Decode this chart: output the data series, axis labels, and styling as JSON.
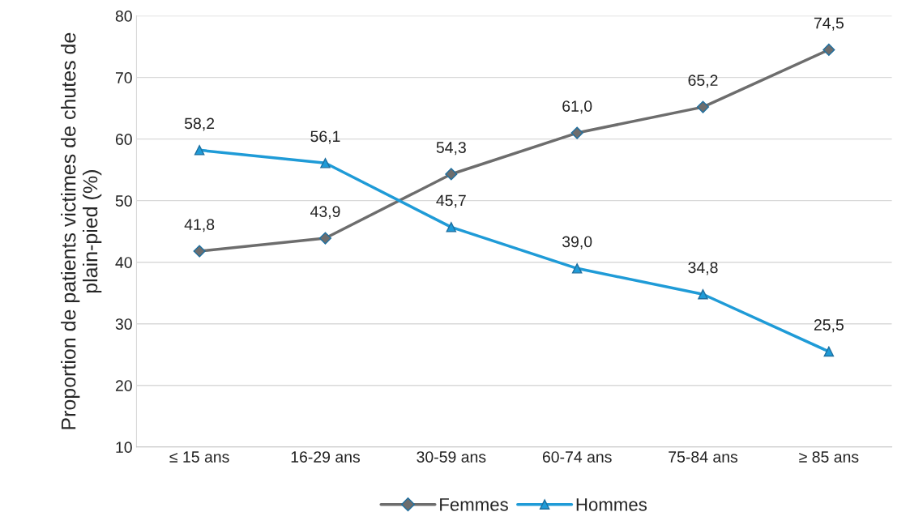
{
  "chart_data": {
    "type": "line",
    "ylabel": "Proportion de patients victimes de chutes de plain-pied (%)",
    "categories": [
      "≤ 15 ans",
      "16-29 ans",
      "30-59 ans",
      "60-74 ans",
      "75-84 ans",
      "≥ 85 ans"
    ],
    "series": [
      {
        "name": "Femmes",
        "color": "#6d6d6d",
        "marker": "diamond",
        "values": [
          41.8,
          43.9,
          54.3,
          61.0,
          65.2,
          74.5
        ],
        "value_labels": [
          "41,8",
          "43,9",
          "54,3",
          "61,0",
          "65,2",
          "74,5"
        ]
      },
      {
        "name": "Hommes",
        "color": "#1f9bd7",
        "marker": "triangle",
        "values": [
          58.2,
          56.1,
          45.7,
          39.0,
          34.8,
          25.5
        ],
        "value_labels": [
          "58,2",
          "56,1",
          "45,7",
          "39,0",
          "34,8",
          "25,5"
        ]
      }
    ],
    "ylim": [
      10,
      80
    ],
    "yticks": [
      10,
      20,
      30,
      40,
      50,
      60,
      70,
      80
    ],
    "grid": "y",
    "legend": "bottom"
  }
}
